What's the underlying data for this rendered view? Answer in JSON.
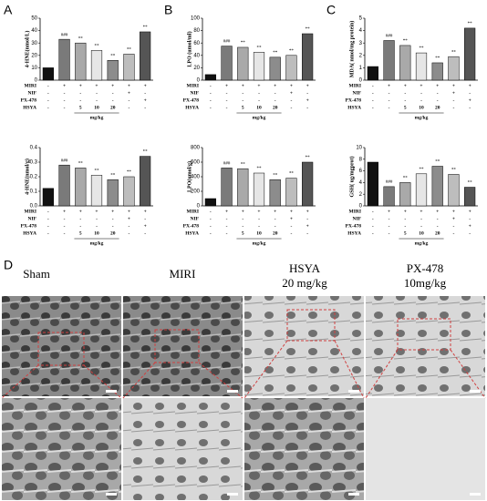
{
  "panels": [
    "A",
    "B",
    "C",
    "D"
  ],
  "chart_data": [
    {
      "type": "bar",
      "ylabel": "4-HNE(nmol/L)",
      "categories": [
        null,
        null,
        null,
        null,
        null,
        null,
        null
      ],
      "values": [
        10,
        33,
        30,
        24,
        16,
        21,
        39
      ],
      "significance": [
        null,
        "###",
        "**",
        "**",
        "**",
        "**",
        "**"
      ],
      "colors": [
        "#111111",
        "#7a7a7a",
        "#a9a9a9",
        "#e6e6e6",
        "#8c8c8c",
        "#bdbdbd",
        "#555555"
      ],
      "ylim": [
        0,
        50
      ],
      "yticks": [
        0,
        10,
        20,
        30,
        40,
        50
      ],
      "table": {
        "rows": [
          {
            "label": "MIRI",
            "cells": [
              "-",
              "+",
              "+",
              "+",
              "+",
              "+",
              "+"
            ]
          },
          {
            "label": "NIF",
            "cells": [
              "-",
              "-",
              "-",
              "-",
              "-",
              "+",
              "-"
            ]
          },
          {
            "label": "PX-478",
            "cells": [
              "-",
              "-",
              "-",
              "-",
              "-",
              "-",
              "+"
            ]
          },
          {
            "label": "HSYA",
            "cells": [
              "-",
              "-",
              5,
              10,
              20,
              "-",
              "-"
            ]
          }
        ],
        "unit": "mg/kg"
      }
    },
    {
      "type": "bar",
      "ylabel": "LPO (umol/ml)",
      "categories": [
        null,
        null,
        null,
        null,
        null,
        null,
        null
      ],
      "values": [
        9,
        55,
        53,
        45,
        37,
        40,
        75
      ],
      "significance": [
        null,
        "###",
        "**",
        "**",
        "**",
        "**",
        "**"
      ],
      "colors": [
        "#111111",
        "#7a7a7a",
        "#a9a9a9",
        "#e6e6e6",
        "#8c8c8c",
        "#bdbdbd",
        "#555555"
      ],
      "ylim": [
        0,
        100
      ],
      "yticks": [
        0,
        20,
        40,
        60,
        80,
        100
      ],
      "table": {
        "rows": [
          {
            "label": "MIRI",
            "cells": [
              "-",
              "+",
              "+",
              "+",
              "+",
              "+",
              "+"
            ]
          },
          {
            "label": "NIF",
            "cells": [
              "-",
              "-",
              "-",
              "-",
              "-",
              "+",
              "-"
            ]
          },
          {
            "label": "PX-478",
            "cells": [
              "-",
              "-",
              "-",
              "-",
              "-",
              "-",
              "+"
            ]
          },
          {
            "label": "HSYA",
            "cells": [
              "-",
              "-",
              5,
              10,
              20,
              "-",
              "-"
            ]
          }
        ],
        "unit": "mg/kg"
      }
    },
    {
      "type": "bar",
      "ylabel": "MDA( nmol/mg protein)",
      "categories": [
        null,
        null,
        null,
        null,
        null,
        null,
        null
      ],
      "values": [
        1.1,
        3.2,
        2.8,
        2.2,
        1.4,
        1.9,
        4.2
      ],
      "significance": [
        null,
        "###",
        "**",
        "**",
        "**",
        "**",
        "**"
      ],
      "colors": [
        "#111111",
        "#7a7a7a",
        "#a9a9a9",
        "#e6e6e6",
        "#8c8c8c",
        "#bdbdbd",
        "#555555"
      ],
      "ylim": [
        0,
        5
      ],
      "yticks": [
        0,
        1,
        2,
        3,
        4,
        5
      ],
      "table": {
        "rows": [
          {
            "label": "MIRI",
            "cells": [
              "-",
              "+",
              "+",
              "+",
              "+",
              "+",
              "+"
            ]
          },
          {
            "label": "NIF",
            "cells": [
              "-",
              "-",
              "-",
              "-",
              "-",
              "+",
              "-"
            ]
          },
          {
            "label": "PX-478",
            "cells": [
              "-",
              "-",
              "-",
              "-",
              "-",
              "-",
              "+"
            ]
          },
          {
            "label": "HSYA",
            "cells": [
              "-",
              "-",
              5,
              10,
              20,
              "-",
              "-"
            ]
          }
        ],
        "unit": "mg/kg"
      }
    },
    {
      "type": "bar",
      "ylabel": "4-HNE(nmol/g)",
      "categories": [
        null,
        null,
        null,
        null,
        null,
        null,
        null
      ],
      "values": [
        0.12,
        0.28,
        0.26,
        0.21,
        0.18,
        0.2,
        0.34
      ],
      "significance": [
        null,
        "###",
        "**",
        "**",
        "**",
        "**",
        "**"
      ],
      "colors": [
        "#111111",
        "#7a7a7a",
        "#a9a9a9",
        "#e6e6e6",
        "#8c8c8c",
        "#bdbdbd",
        "#555555"
      ],
      "ylim": [
        0,
        0.4
      ],
      "yticks": [
        {
          "value": 0,
          "label": "0.0"
        },
        0.1,
        0.2,
        0.3,
        0.4
      ],
      "table": {
        "rows": [
          {
            "label": "MIRI",
            "cells": [
              "-",
              "+",
              "+",
              "+",
              "+",
              "+",
              "+"
            ]
          },
          {
            "label": "NIF",
            "cells": [
              "-",
              "-",
              "-",
              "-",
              "-",
              "+",
              "-"
            ]
          },
          {
            "label": "PX-478",
            "cells": [
              "-",
              "-",
              "-",
              "-",
              "-",
              "-",
              "+"
            ]
          },
          {
            "label": "HSYA",
            "cells": [
              "-",
              "-",
              5,
              10,
              20,
              "-",
              "-"
            ]
          }
        ],
        "unit": "mg/kg"
      }
    },
    {
      "type": "bar",
      "ylabel": "LPO(umol/g)",
      "categories": [
        null,
        null,
        null,
        null,
        null,
        null,
        null
      ],
      "values": [
        100,
        520,
        510,
        450,
        360,
        380,
        600
      ],
      "significance": [
        null,
        "###",
        "**",
        "**",
        "**",
        "**",
        "**"
      ],
      "colors": [
        "#111111",
        "#7a7a7a",
        "#a9a9a9",
        "#e6e6e6",
        "#8c8c8c",
        "#bdbdbd",
        "#555555"
      ],
      "ylim": [
        0,
        800
      ],
      "yticks": [
        0,
        200,
        400,
        600,
        800
      ],
      "table": {
        "rows": [
          {
            "label": "MIRI",
            "cells": [
              "-",
              "+",
              "+",
              "+",
              "+",
              "+",
              "+"
            ]
          },
          {
            "label": "NIF",
            "cells": [
              "-",
              "-",
              "-",
              "-",
              "-",
              "+",
              "-"
            ]
          },
          {
            "label": "PX-478",
            "cells": [
              "-",
              "-",
              "-",
              "-",
              "-",
              "-",
              "+"
            ]
          },
          {
            "label": "HSYA",
            "cells": [
              "-",
              "-",
              5,
              10,
              20,
              "-",
              "-"
            ]
          }
        ],
        "unit": "mg/kg"
      }
    },
    {
      "type": "bar",
      "ylabel": "GSH( ug/mgprot)",
      "categories": [
        null,
        null,
        null,
        null,
        null,
        null,
        null
      ],
      "values": [
        7.5,
        3.3,
        4.0,
        5.5,
        6.8,
        5.4,
        3.2
      ],
      "significance": [
        null,
        "###",
        "**",
        "**",
        "**",
        "**",
        "**"
      ],
      "colors": [
        "#111111",
        "#7a7a7a",
        "#a9a9a9",
        "#e6e6e6",
        "#8c8c8c",
        "#bdbdbd",
        "#555555"
      ],
      "ylim": [
        0,
        10
      ],
      "yticks": [
        0,
        2,
        4,
        6,
        8,
        10
      ],
      "table": {
        "rows": [
          {
            "label": "MIRI",
            "cells": [
              "-",
              "+",
              "+",
              "+",
              "+",
              "+",
              "+"
            ]
          },
          {
            "label": "NIF",
            "cells": [
              "-",
              "-",
              "-",
              "-",
              "-",
              "+",
              "-"
            ]
          },
          {
            "label": "PX-478",
            "cells": [
              "-",
              "-",
              "-",
              "-",
              "-",
              "-",
              "+"
            ]
          },
          {
            "label": "HSYA",
            "cells": [
              "-",
              "-",
              5,
              10,
              20,
              "-",
              "-"
            ]
          }
        ],
        "unit": "mg/kg"
      }
    }
  ],
  "images": [
    {
      "title": "Sham"
    },
    {
      "title": "MIRI"
    },
    {
      "title": "HSYA",
      "subtitle": "20 mg/kg"
    },
    {
      "title": "PX-478",
      "subtitle": "10mg/kg"
    }
  ]
}
